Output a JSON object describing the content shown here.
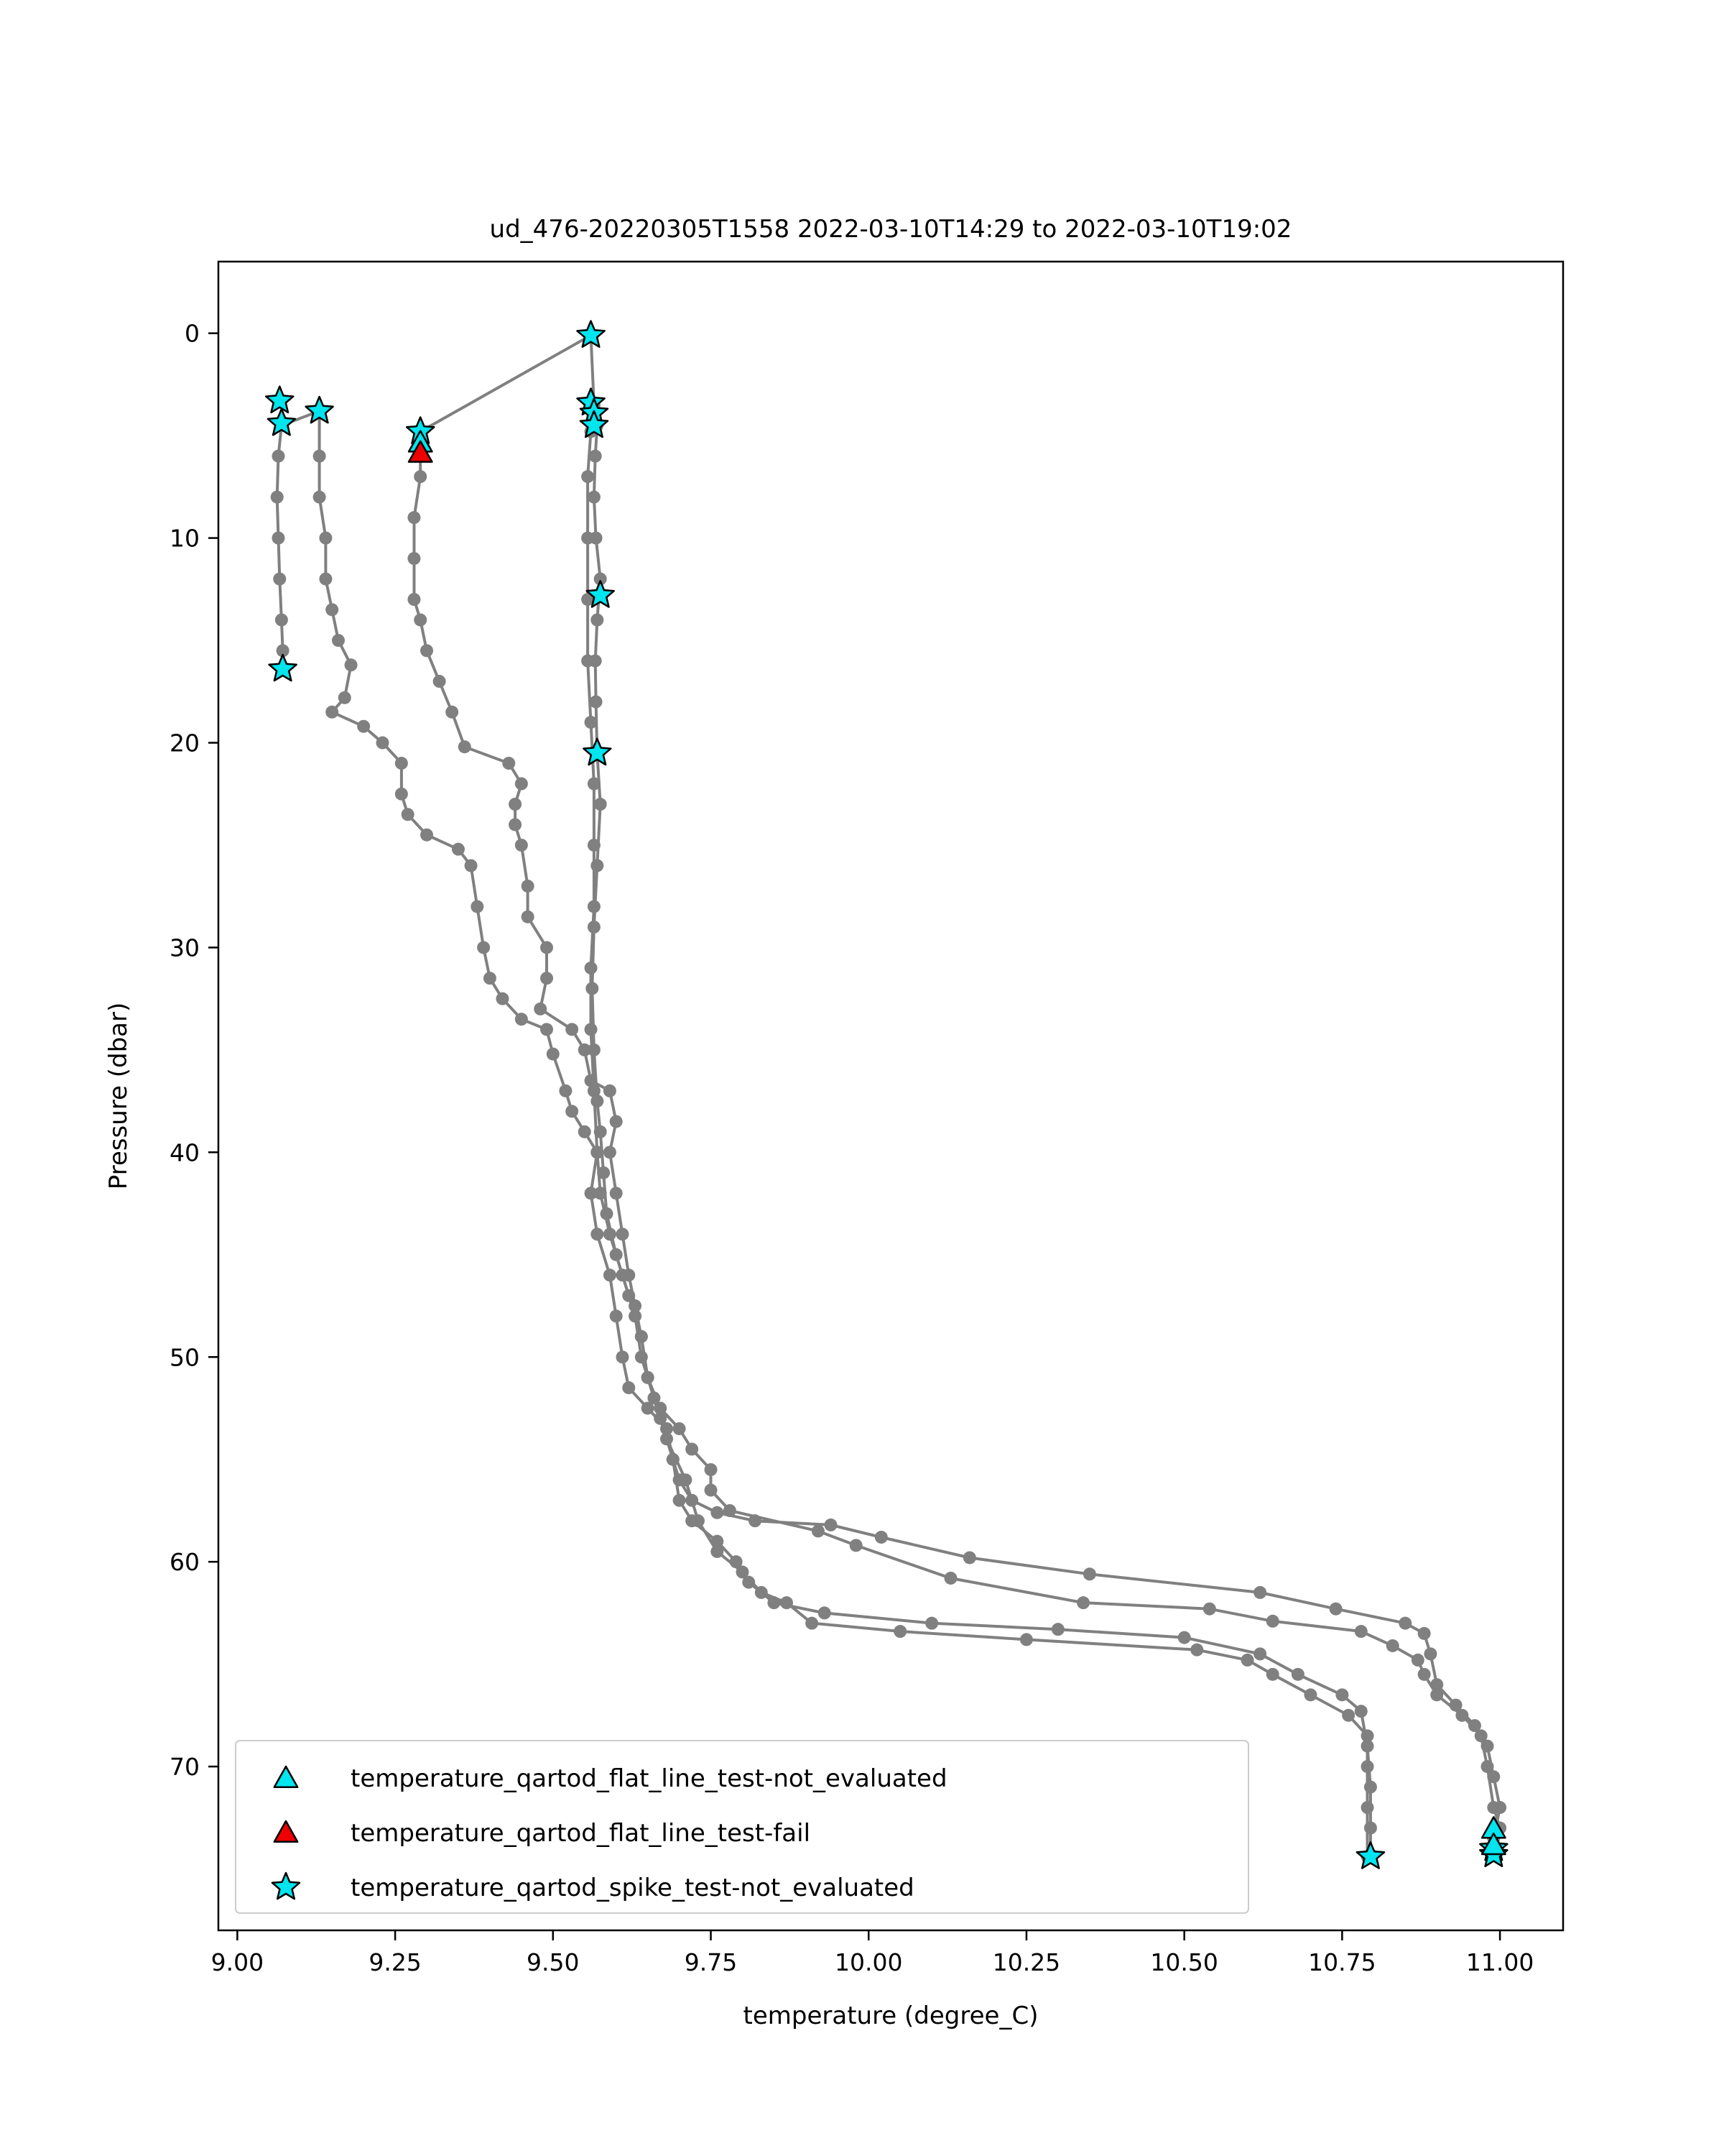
{
  "chart_data": {
    "type": "scatter",
    "title": "ud_476-20220305T1558 2022-03-10T14:29 to 2022-03-10T19:02",
    "xlabel": "temperature (degree_C)",
    "ylabel": "Pressure (dbar)",
    "xlim": [
      8.97,
      11.1
    ],
    "ylim": [
      78.0,
      -3.5
    ],
    "y_inverted": true,
    "grid": false,
    "legend_position": "lower-left",
    "xticks": [
      "9.00",
      "9.25",
      "9.50",
      "9.75",
      "10.00",
      "10.25",
      "10.50",
      "10.75",
      "11.00"
    ],
    "yticks": [
      "0",
      "10",
      "20",
      "30",
      "40",
      "50",
      "60",
      "70"
    ],
    "line_color": "#808080",
    "profiles": [
      {
        "points": [
          [
            9.07,
            4.5
          ],
          [
            9.065,
            6
          ],
          [
            9.063,
            8
          ],
          [
            9.065,
            10
          ],
          [
            9.067,
            12
          ],
          [
            9.07,
            14
          ],
          [
            9.072,
            15.5
          ],
          [
            9.072,
            16.4
          ]
        ]
      },
      {
        "points": [
          [
            9.13,
            3.8
          ],
          [
            9.13,
            6
          ],
          [
            9.13,
            8
          ],
          [
            9.14,
            10
          ],
          [
            9.14,
            12
          ],
          [
            9.15,
            13.5
          ],
          [
            9.16,
            15
          ],
          [
            9.18,
            16.2
          ],
          [
            9.17,
            17.8
          ],
          [
            9.15,
            18.5
          ],
          [
            9.2,
            19.2
          ],
          [
            9.23,
            20
          ],
          [
            9.26,
            21
          ],
          [
            9.26,
            22.5
          ],
          [
            9.27,
            23.5
          ],
          [
            9.3,
            24.5
          ],
          [
            9.35,
            25.2
          ],
          [
            9.37,
            26
          ],
          [
            9.38,
            28
          ],
          [
            9.39,
            30
          ],
          [
            9.4,
            31.5
          ],
          [
            9.42,
            32.5
          ],
          [
            9.45,
            33.5
          ],
          [
            9.49,
            34
          ],
          [
            9.5,
            35.2
          ],
          [
            9.52,
            37
          ],
          [
            9.53,
            38
          ],
          [
            9.55,
            39
          ],
          [
            9.57,
            40
          ],
          [
            9.56,
            42
          ],
          [
            9.57,
            44
          ],
          [
            9.59,
            46
          ],
          [
            9.6,
            48
          ],
          [
            9.61,
            50
          ],
          [
            9.62,
            51.5
          ],
          [
            9.65,
            52.5
          ],
          [
            9.68,
            53.5
          ],
          [
            9.69,
            55
          ],
          [
            9.7,
            56
          ],
          [
            9.72,
            57
          ],
          [
            9.76,
            57.6
          ],
          [
            9.82,
            58
          ],
          [
            9.94,
            58.2
          ],
          [
            10.02,
            58.8
          ],
          [
            10.16,
            59.8
          ],
          [
            10.35,
            60.6
          ],
          [
            10.62,
            61.5
          ],
          [
            10.74,
            62.3
          ],
          [
            10.85,
            63
          ],
          [
            10.88,
            63.5
          ],
          [
            10.89,
            64.5
          ],
          [
            10.9,
            66
          ],
          [
            10.93,
            67
          ],
          [
            10.96,
            68
          ],
          [
            10.98,
            69
          ],
          [
            10.99,
            70.5
          ],
          [
            11.0,
            72
          ],
          [
            10.99,
            73.5
          ],
          [
            10.99,
            74
          ]
        ]
      },
      {
        "points": [
          [
            9.29,
            4.8
          ],
          [
            9.29,
            7
          ],
          [
            9.28,
            9
          ],
          [
            9.28,
            11
          ],
          [
            9.28,
            13
          ],
          [
            9.29,
            14
          ],
          [
            9.3,
            15.5
          ],
          [
            9.32,
            17
          ],
          [
            9.34,
            18.5
          ],
          [
            9.36,
            20.2
          ],
          [
            9.43,
            21
          ],
          [
            9.45,
            22
          ],
          [
            9.44,
            23
          ],
          [
            9.44,
            24
          ],
          [
            9.45,
            25
          ],
          [
            9.46,
            27
          ],
          [
            9.46,
            28.5
          ],
          [
            9.49,
            30
          ],
          [
            9.49,
            31.5
          ],
          [
            9.48,
            33
          ],
          [
            9.53,
            34
          ],
          [
            9.55,
            35
          ],
          [
            9.56,
            36.5
          ],
          [
            9.59,
            37
          ],
          [
            9.6,
            38.5
          ],
          [
            9.59,
            40
          ],
          [
            9.6,
            42
          ],
          [
            9.61,
            44
          ],
          [
            9.62,
            46
          ],
          [
            9.63,
            47.5
          ],
          [
            9.64,
            49
          ],
          [
            9.65,
            51
          ],
          [
            9.67,
            52.5
          ],
          [
            9.7,
            53.5
          ],
          [
            9.72,
            54.5
          ],
          [
            9.75,
            55.5
          ],
          [
            9.75,
            56.5
          ],
          [
            9.78,
            57.5
          ],
          [
            9.92,
            58.5
          ],
          [
            9.98,
            59.2
          ],
          [
            10.13,
            60.8
          ],
          [
            10.34,
            62
          ],
          [
            10.54,
            62.3
          ],
          [
            10.64,
            62.9
          ],
          [
            10.78,
            63.4
          ],
          [
            10.83,
            64.1
          ],
          [
            10.87,
            64.8
          ],
          [
            10.88,
            65.5
          ],
          [
            10.9,
            66.5
          ],
          [
            10.94,
            67.5
          ],
          [
            10.97,
            68.5
          ],
          [
            10.98,
            70
          ],
          [
            10.99,
            72
          ],
          [
            11.0,
            73
          ],
          [
            10.99,
            74.2
          ]
        ]
      },
      {
        "points": [
          [
            9.56,
            0.1
          ],
          [
            9.565,
            3.5
          ],
          [
            9.57,
            4.5
          ],
          [
            9.567,
            6
          ],
          [
            9.565,
            8
          ],
          [
            9.568,
            10
          ],
          [
            9.575,
            12
          ],
          [
            9.57,
            14
          ],
          [
            9.567,
            16
          ],
          [
            9.568,
            18
          ],
          [
            9.57,
            20.5
          ],
          [
            9.575,
            23
          ],
          [
            9.57,
            26
          ],
          [
            9.565,
            29
          ],
          [
            9.562,
            32
          ],
          [
            9.565,
            35
          ],
          [
            9.57,
            37.5
          ],
          [
            9.575,
            39
          ],
          [
            9.58,
            41
          ],
          [
            9.585,
            43
          ],
          [
            9.6,
            45
          ],
          [
            9.62,
            47
          ],
          [
            9.64,
            49
          ],
          [
            9.65,
            51
          ],
          [
            9.67,
            53
          ],
          [
            9.69,
            55
          ],
          [
            9.7,
            57
          ],
          [
            9.72,
            58
          ],
          [
            9.76,
            59
          ],
          [
            9.79,
            60
          ],
          [
            9.81,
            61
          ],
          [
            9.85,
            62
          ],
          [
            9.93,
            62.5
          ],
          [
            10.1,
            63
          ],
          [
            10.3,
            63.3
          ],
          [
            10.5,
            63.7
          ],
          [
            10.62,
            64.5
          ],
          [
            10.68,
            65.5
          ],
          [
            10.75,
            66.5
          ],
          [
            10.78,
            67.3
          ],
          [
            10.79,
            69
          ],
          [
            10.795,
            71
          ],
          [
            10.795,
            73
          ],
          [
            10.795,
            74.3
          ]
        ]
      },
      {
        "points": [
          [
            9.56,
            4.8
          ],
          [
            9.555,
            7
          ],
          [
            9.555,
            10
          ],
          [
            9.555,
            13
          ],
          [
            9.555,
            16
          ],
          [
            9.56,
            19
          ],
          [
            9.565,
            22
          ],
          [
            9.565,
            25
          ],
          [
            9.565,
            28
          ],
          [
            9.56,
            31
          ],
          [
            9.56,
            34
          ],
          [
            9.565,
            37
          ],
          [
            9.57,
            40
          ],
          [
            9.575,
            42
          ],
          [
            9.59,
            44
          ],
          [
            9.61,
            46
          ],
          [
            9.63,
            48
          ],
          [
            9.64,
            50
          ],
          [
            9.66,
            52
          ],
          [
            9.68,
            54
          ],
          [
            9.71,
            56
          ],
          [
            9.73,
            58
          ],
          [
            9.76,
            59.5
          ],
          [
            9.8,
            60.5
          ],
          [
            9.83,
            61.5
          ],
          [
            9.87,
            62
          ],
          [
            9.91,
            63
          ],
          [
            10.05,
            63.4
          ],
          [
            10.25,
            63.8
          ],
          [
            10.52,
            64.3
          ],
          [
            10.6,
            64.8
          ],
          [
            10.64,
            65.5
          ],
          [
            10.7,
            66.5
          ],
          [
            10.76,
            67.5
          ],
          [
            10.79,
            68.5
          ],
          [
            10.79,
            70
          ],
          [
            10.79,
            72
          ],
          [
            10.79,
            74.4
          ]
        ]
      },
      {
        "points": [
          [
            9.29,
            4.8
          ],
          [
            9.56,
            0.1
          ]
        ]
      },
      {
        "points": [
          [
            9.07,
            4.5
          ],
          [
            9.13,
            3.8
          ]
        ]
      }
    ],
    "markers": [
      {
        "series": "temperature_qartod_spike_test-not_evaluated",
        "shape": "star",
        "color": "#00e5ee",
        "points": [
          [
            9.56,
            0.1
          ],
          [
            9.067,
            3.3
          ],
          [
            9.07,
            4.4
          ],
          [
            9.13,
            3.8
          ],
          [
            9.29,
            4.8
          ],
          [
            9.56,
            3.4
          ],
          [
            9.565,
            3.9
          ],
          [
            9.565,
            4.5
          ],
          [
            9.575,
            12.8
          ],
          [
            9.072,
            16.4
          ],
          [
            9.57,
            20.5
          ],
          [
            10.795,
            74.4
          ],
          [
            10.99,
            74.0
          ],
          [
            10.99,
            74.3
          ]
        ]
      },
      {
        "series": "temperature_qartod_flat_line_test-not_evaluated",
        "shape": "triangle",
        "color": "#00e5ee",
        "points": [
          [
            9.29,
            5.4
          ],
          [
            10.99,
            73.1
          ],
          [
            10.99,
            73.9
          ]
        ]
      },
      {
        "series": "temperature_qartod_flat_line_test-fail",
        "shape": "triangle",
        "color": "#ee0000",
        "points": [
          [
            9.29,
            5.9
          ]
        ]
      }
    ],
    "legend": [
      {
        "label": "temperature_qartod_flat_line_test-not_evaluated",
        "shape": "triangle",
        "color": "#00e5ee"
      },
      {
        "label": "temperature_qartod_flat_line_test-fail",
        "shape": "triangle",
        "color": "#ee0000"
      },
      {
        "label": "temperature_qartod_spike_test-not_evaluated",
        "shape": "star",
        "color": "#00e5ee"
      }
    ]
  }
}
